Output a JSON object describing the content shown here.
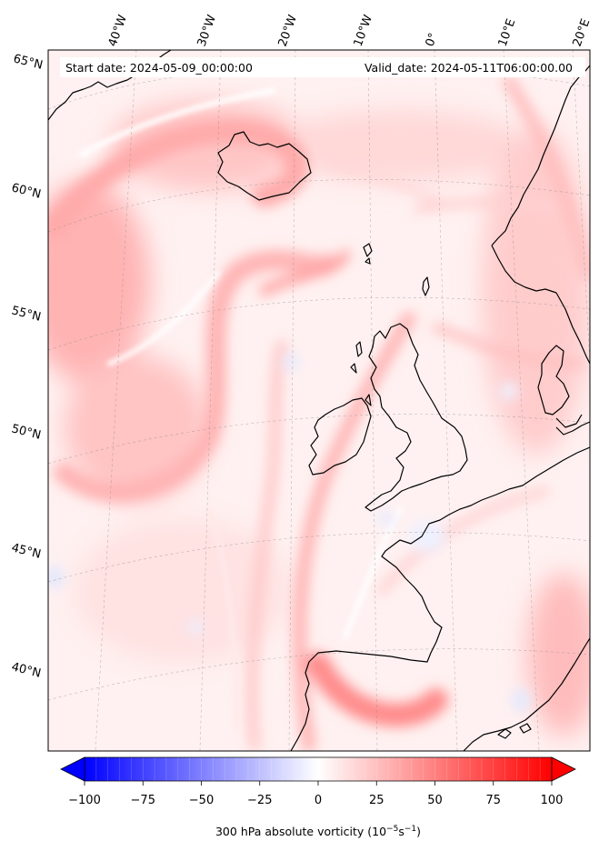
{
  "header": {
    "start_date": "Start date: 2024-05-09_00:00:00",
    "valid_date": "Valid_date: 2024-05-11T06:00:00.00"
  },
  "longitude_labels": [
    "40°W",
    "30°W",
    "20°W",
    "10°W",
    "0°",
    "10°E",
    "20°E"
  ],
  "latitude_labels": [
    "65°N",
    "60°N",
    "55°N",
    "50°N",
    "45°N",
    "40°N"
  ],
  "colorbar": {
    "ticks": [
      "−100",
      "−75",
      "−50",
      "−25",
      "0",
      "25",
      "50",
      "75",
      "100"
    ],
    "label_prefix": "300 hPa absolute vorticity (10",
    "label_exp1": "−5",
    "label_mid": "s",
    "label_exp2": "−1",
    "label_suffix": ")",
    "min": -100,
    "max": 100,
    "extend": "both",
    "colormap": "bwr",
    "low_color": "#0000ff",
    "mid_color": "#ffffff",
    "high_color": "#ff0000"
  },
  "map": {
    "projection": "conic",
    "gridlines": "dashed",
    "coastlines": true
  }
}
